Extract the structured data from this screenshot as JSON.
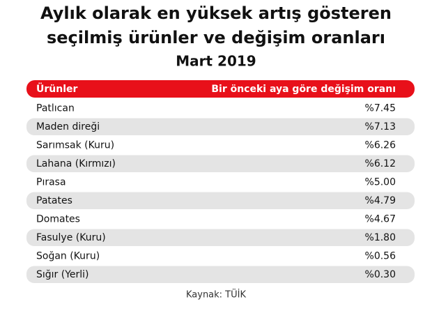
{
  "header": {
    "title_lines": [
      "Aylık olarak en yüksek artış gösteren",
      "seçilmiş ürünler ve değişim oranları"
    ],
    "subtitle": "Mart 2019"
  },
  "table": {
    "columns": [
      "Ürünler",
      "Bir önceki aya göre değişim oranı"
    ],
    "rows": [
      [
        "Patlıcan",
        "%7.45"
      ],
      [
        "Maden direği",
        "%7.13"
      ],
      [
        "Sarımsak (Kuru)",
        "%6.26"
      ],
      [
        "Lahana (Kırmızı)",
        "%6.12"
      ],
      [
        "Pırasa",
        "%5.00"
      ],
      [
        "Patates",
        "%4.79"
      ],
      [
        "Domates",
        "%4.67"
      ],
      [
        "Fasulye (Kuru)",
        "%1.80"
      ],
      [
        "Soğan (Kuru)",
        "%0.56"
      ],
      [
        "Sığır (Yerli)",
        "%0.30"
      ]
    ]
  },
  "footer": {
    "source": "Kaynak: TÜİK"
  }
}
